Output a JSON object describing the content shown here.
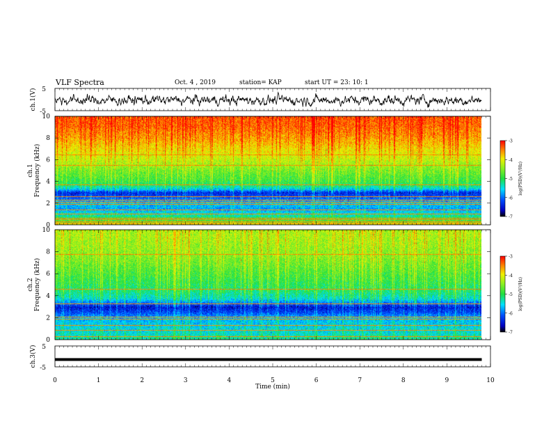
{
  "header": {
    "title": "VLF Spectra",
    "date": "Oct. 4 , 2019",
    "station": "station= KAP",
    "start": "start  UT =  23: 10: 1"
  },
  "chart_data": [
    {
      "type": "line",
      "panel": "waveform-ch1",
      "ylabel": "ch.1(V)",
      "yticklabels": [
        "5",
        "-5"
      ],
      "ylim": [
        -5,
        5
      ],
      "xlim": [
        0,
        10
      ],
      "series": [
        {
          "x_range": [
            0,
            9.8
          ],
          "y_mean": -0.3,
          "y_amplitude": 2.5
        }
      ]
    },
    {
      "type": "heatmap",
      "panel": "spectrogram-ch1",
      "ylabel": "ch.1\nFrequency (kHz)",
      "yticks": [
        0,
        2,
        4,
        6,
        8,
        10
      ],
      "ylim": [
        0,
        10
      ],
      "xlim": [
        0,
        10
      ],
      "data_x_range": [
        0,
        9.8
      ],
      "colorbar": {
        "label": "log(PSD)(V²/Hz)",
        "ticks": [
          -3,
          -4,
          -5,
          -6,
          -7
        ],
        "range": [
          -7,
          -3
        ]
      },
      "profile_log_psd": {
        "freq_khz": [
          0,
          0.3,
          0.6,
          1.0,
          1.5,
          2.0,
          2.5,
          3.0,
          3.3,
          3.6,
          4.0,
          5.0,
          6.0,
          7.0,
          8.0,
          9.0,
          10.0
        ],
        "log_psd": [
          -3.6,
          -4.8,
          -5.0,
          -5.4,
          -5.8,
          -5.6,
          -6.1,
          -6.4,
          -5.6,
          -5.2,
          -4.9,
          -4.6,
          -4.2,
          -3.9,
          -3.6,
          -3.4,
          -3.3
        ]
      },
      "lines_khz": [
        0.2,
        0.35,
        0.5,
        0.65,
        1.0,
        1.4,
        1.9,
        2.1,
        2.3,
        2.6,
        3.7,
        5.5,
        6.5,
        9.1
      ]
    },
    {
      "type": "heatmap",
      "panel": "spectrogram-ch2",
      "ylabel": "ch.2\nFrequency (kHz)",
      "yticks": [
        0,
        2,
        4,
        6,
        8,
        10
      ],
      "ylim": [
        0,
        10
      ],
      "xlim": [
        0,
        10
      ],
      "data_x_range": [
        0,
        9.8
      ],
      "colorbar": {
        "label": "log(PSD)(V²/Hz)",
        "ticks": [
          -3,
          -4,
          -5,
          -6,
          -7
        ],
        "range": [
          -7,
          -3
        ]
      },
      "profile_log_psd": {
        "freq_khz": [
          0,
          0.5,
          1.0,
          1.5,
          2.0,
          2.5,
          3.0,
          3.4,
          3.8,
          4.5,
          5.5,
          6.5,
          7.5,
          8.5,
          9.5,
          10.0
        ],
        "log_psd": [
          -5.2,
          -5.4,
          -5.5,
          -5.6,
          -5.7,
          -6.2,
          -6.5,
          -5.9,
          -5.4,
          -5.1,
          -4.9,
          -4.7,
          -4.5,
          -4.4,
          -4.3,
          -4.3
        ]
      },
      "lines_khz": [
        0.3,
        0.9,
        1.3,
        1.9,
        2.1,
        3.3,
        4.6,
        7.8
      ]
    },
    {
      "type": "line",
      "panel": "waveform-ch3",
      "ylabel": "ch.3(V)",
      "yticklabels": [
        "5",
        "-5"
      ],
      "ylim": [
        -5,
        5
      ],
      "xlim": [
        0,
        10
      ],
      "series": [
        {
          "x_range": [
            0,
            9.8
          ],
          "y_mean": -1.5,
          "y_amplitude": 0.15
        }
      ]
    }
  ],
  "xaxis": {
    "label": "Time (min)",
    "ticks": [
      0,
      1,
      2,
      3,
      4,
      5,
      6,
      7,
      8,
      9,
      10
    ]
  }
}
